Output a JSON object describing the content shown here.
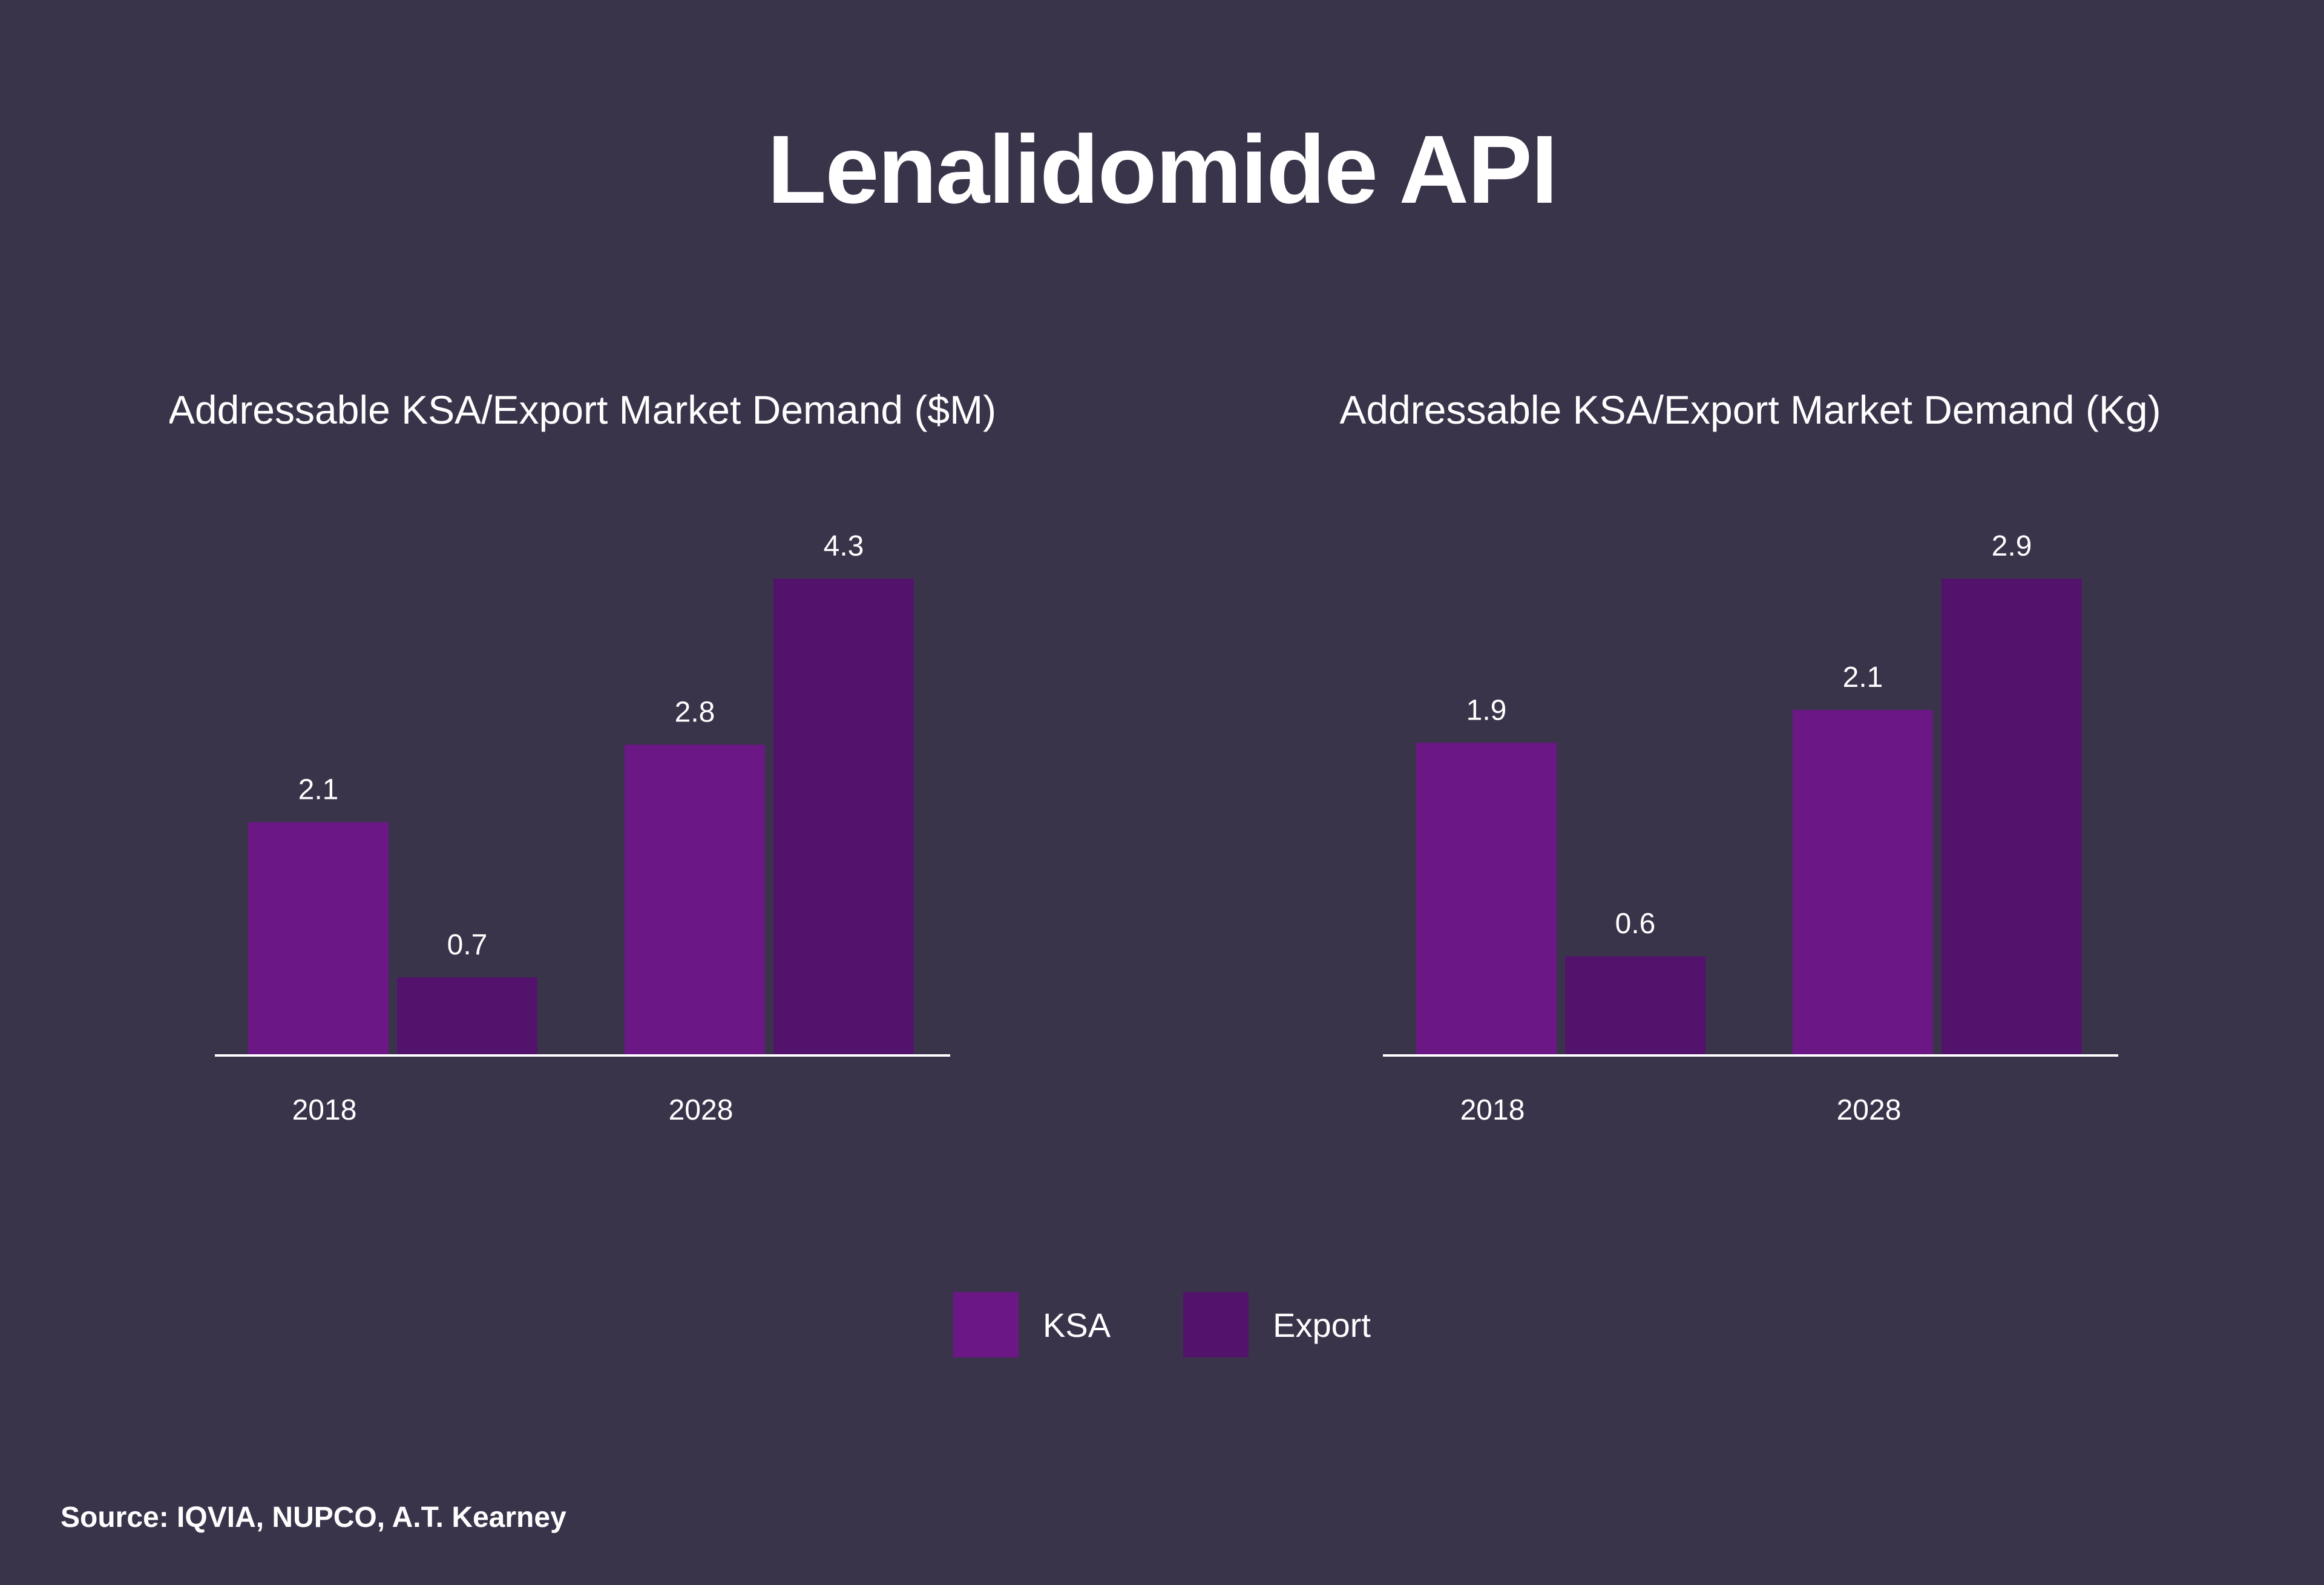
{
  "title": "Lenalidomide API",
  "colors": {
    "background": "#3a344b",
    "ksa": "#6b1786",
    "export": "#53136c",
    "axis": "#ffffff",
    "text": "#ffffff"
  },
  "legend": [
    {
      "label": "KSA",
      "color": "#6b1786"
    },
    {
      "label": "Export",
      "color": "#53136c"
    }
  ],
  "source": "Source: IQVIA, NUPCO, A.T. Kearney",
  "chart_data": [
    {
      "type": "bar",
      "title": "Addressable KSA/Export Market Demand ($M)",
      "categories": [
        "2018",
        "2028"
      ],
      "series": [
        {
          "name": "KSA",
          "values": [
            2.1,
            2.8
          ],
          "labels": [
            "2.1",
            "2.8"
          ]
        },
        {
          "name": "Export",
          "values": [
            0.7,
            4.3
          ],
          "labels": [
            "0.7",
            "4.3"
          ]
        }
      ],
      "xlabel": "",
      "ylabel": "",
      "ylim": [
        0,
        4.3
      ],
      "grid": false,
      "legend": "bottom"
    },
    {
      "type": "bar",
      "title": "Addressable KSA/Export Market Demand (Kg)",
      "categories": [
        "2018",
        "2028"
      ],
      "series": [
        {
          "name": "KSA",
          "values": [
            1.9,
            2.1
          ],
          "labels": [
            "1.9",
            "2.1"
          ]
        },
        {
          "name": "Export",
          "values": [
            0.6,
            2.9
          ],
          "labels": [
            "0.6",
            "2.9"
          ]
        }
      ],
      "xlabel": "",
      "ylabel": "",
      "ylim": [
        0,
        2.9
      ],
      "grid": false,
      "legend": "bottom"
    }
  ]
}
